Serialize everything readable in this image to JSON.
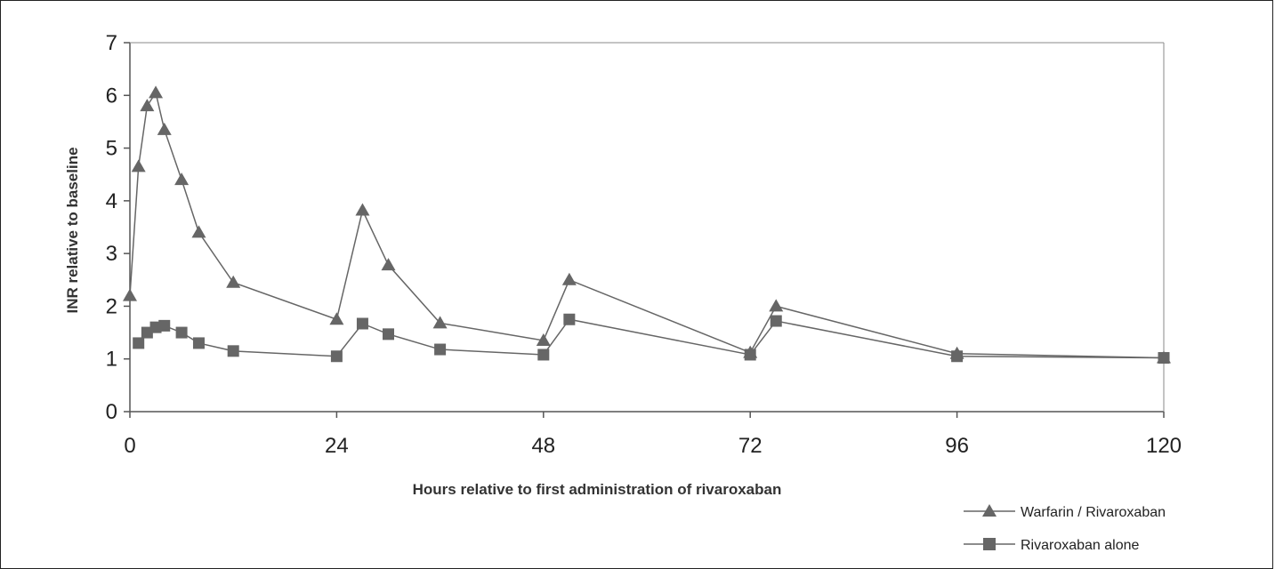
{
  "chart_data": {
    "type": "line",
    "title": "",
    "xlabel": "Hours relative to first administration of rivaroxaban",
    "ylabel": "INR relative to baseline",
    "xlim": [
      0,
      120
    ],
    "ylim": [
      0,
      7
    ],
    "xticks": [
      "0",
      "24",
      "48",
      "72",
      "96",
      "120"
    ],
    "xtick_values": [
      0,
      24,
      48,
      72,
      96,
      120
    ],
    "yticks": [
      "0",
      "1",
      "2",
      "3",
      "4",
      "5",
      "6",
      "7"
    ],
    "ytick_values": [
      0,
      1,
      2,
      3,
      4,
      5,
      6,
      7
    ],
    "grid": false,
    "legend_position": "bottom-right",
    "series": [
      {
        "name": "Warfarin / Rivaroxaban",
        "marker": "triangle",
        "color": "#666666",
        "x": [
          0,
          1,
          2,
          3,
          4,
          6,
          8,
          12,
          24,
          27,
          30,
          36,
          48,
          51,
          72,
          75,
          96,
          120
        ],
        "y": [
          2.2,
          4.65,
          5.8,
          6.05,
          5.35,
          4.4,
          3.4,
          2.45,
          1.75,
          3.82,
          2.78,
          1.68,
          1.35,
          2.5,
          1.12,
          2.0,
          1.1,
          1.02
        ]
      },
      {
        "name": "Rivaroxaban alone",
        "marker": "square",
        "color": "#666666",
        "x": [
          1,
          2,
          3,
          4,
          6,
          8,
          12,
          24,
          27,
          30,
          36,
          48,
          51,
          72,
          75,
          96,
          120
        ],
        "y": [
          1.3,
          1.5,
          1.6,
          1.63,
          1.5,
          1.3,
          1.15,
          1.05,
          1.67,
          1.47,
          1.18,
          1.08,
          1.75,
          1.08,
          1.72,
          1.05,
          1.02
        ]
      }
    ]
  }
}
